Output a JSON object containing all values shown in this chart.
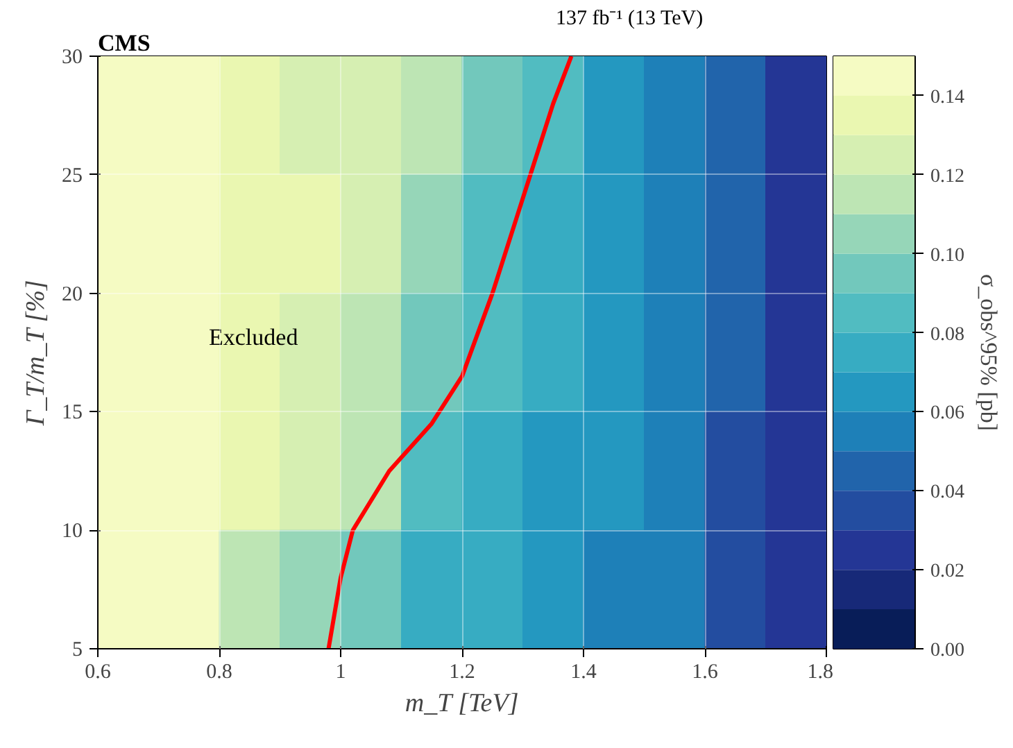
{
  "chart_data": {
    "type": "heatmap",
    "title": "CMS",
    "subtitle": "137 fb⁻¹ (13 TeV)",
    "xlabel": "m_T [TeV]",
    "ylabel": "Γ_T/m_T [%]",
    "clabel": "σ_obs^95% [pb]",
    "x": [
      0.65,
      0.75,
      0.85,
      0.95,
      1.05,
      1.15,
      1.25,
      1.35,
      1.45,
      1.55,
      1.65,
      1.75
    ],
    "y": [
      27.5,
      22.5,
      17.5,
      12.5,
      7.5
    ],
    "cells": [
      [
        0.148,
        0.145,
        0.13,
        0.125,
        0.12,
        0.11,
        0.095,
        0.08,
        0.065,
        0.055,
        0.04,
        0.022
      ],
      [
        0.148,
        0.145,
        0.135,
        0.13,
        0.12,
        0.105,
        0.085,
        0.075,
        0.065,
        0.055,
        0.04,
        0.022
      ],
      [
        0.148,
        0.145,
        0.13,
        0.125,
        0.115,
        0.095,
        0.08,
        0.072,
        0.063,
        0.052,
        0.04,
        0.02
      ],
      [
        0.148,
        0.145,
        0.13,
        0.12,
        0.11,
        0.085,
        0.075,
        0.068,
        0.062,
        0.05,
        0.038,
        0.02
      ],
      [
        0.148,
        0.145,
        0.11,
        0.1,
        0.09,
        0.075,
        0.07,
        0.065,
        0.058,
        0.05,
        0.035,
        0.02
      ]
    ],
    "xlim": [
      0.6,
      1.8
    ],
    "xticks": [
      0.6,
      0.8,
      1.0,
      1.2,
      1.4,
      1.6,
      1.8
    ],
    "ylim": [
      5,
      30
    ],
    "yticks": [
      5,
      10,
      15,
      20,
      25,
      30
    ],
    "clim": [
      0,
      0.15
    ],
    "cticks": [
      {
        "value": 0,
        "label": "0.00"
      },
      0.02,
      0.04,
      0.06,
      0.08,
      {
        "value": 0.1,
        "label": "0.10"
      },
      0.12,
      0.14
    ],
    "series": [
      {
        "type": "line",
        "color": "#ff0000",
        "x": [
          0.98,
          1.0,
          1.02,
          1.08,
          1.15,
          1.2,
          1.25,
          1.3,
          1.35,
          1.38
        ],
        "values": [
          5,
          8,
          10,
          12.5,
          14.5,
          16.5,
          20,
          24,
          28,
          30
        ]
      }
    ],
    "annotations": [
      "Excluded"
    ],
    "grid": true
  }
}
